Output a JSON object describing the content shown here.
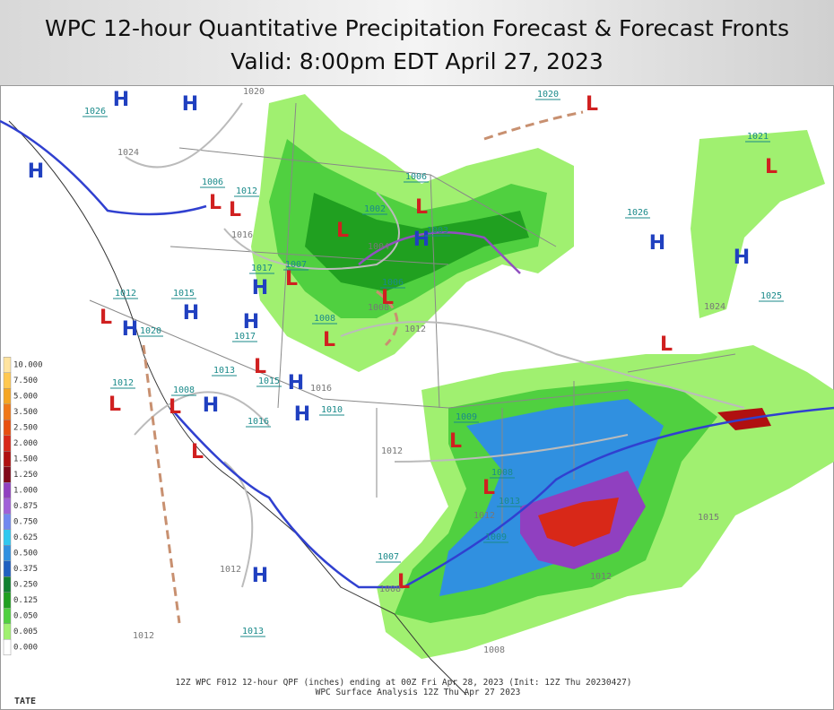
{
  "header": {
    "title": "WPC 12-hour Quantitative Precipitation Forecast & Forecast Fronts",
    "subtitle": "Valid: 8:00pm EDT April 27, 2023"
  },
  "legend": {
    "items": [
      {
        "label": "10.000",
        "color": "#ffe4a0"
      },
      {
        "label": "7.500",
        "color": "#ffc850"
      },
      {
        "label": "5.000",
        "color": "#f5a623"
      },
      {
        "label": "3.500",
        "color": "#f07818"
      },
      {
        "label": "2.500",
        "color": "#e85010"
      },
      {
        "label": "2.000",
        "color": "#d82818"
      },
      {
        "label": "1.500",
        "color": "#b01010"
      },
      {
        "label": "1.250",
        "color": "#800818"
      },
      {
        "label": "1.000",
        "color": "#9040c0"
      },
      {
        "label": "0.875",
        "color": "#a060d8"
      },
      {
        "label": "0.750",
        "color": "#7088f0"
      },
      {
        "label": "0.625",
        "color": "#30c8f0"
      },
      {
        "label": "0.500",
        "color": "#3090e0"
      },
      {
        "label": "0.375",
        "color": "#2060c0"
      },
      {
        "label": "0.250",
        "color": "#108030"
      },
      {
        "label": "0.125",
        "color": "#20a020"
      },
      {
        "label": "0.050",
        "color": "#50d040"
      },
      {
        "label": "0.005",
        "color": "#a0f070"
      },
      {
        "label": "0.000",
        "color": "#ffffff"
      }
    ]
  },
  "highs": [
    "H",
    "H",
    "H",
    "H",
    "H",
    "H",
    "H",
    "H",
    "H",
    "H",
    "H",
    "H",
    "H",
    "H"
  ],
  "lows": [
    "L",
    "L",
    "L",
    "L",
    "L",
    "L",
    "L",
    "L",
    "L",
    "L",
    "L",
    "L",
    "L",
    "L",
    "L",
    "L",
    "L",
    "L"
  ],
  "center_labels": [
    "1026",
    "1020",
    "1021",
    "1006",
    "1006",
    "1012",
    "1002",
    "1003",
    "1026",
    "1007",
    "1017",
    "1012",
    "1015",
    "1006",
    "1008",
    "1020",
    "1017",
    "1013",
    "1015",
    "1008",
    "1012",
    "1010",
    "1016",
    "1009",
    "1008",
    "1013",
    "1009",
    "1007",
    "1025",
    "1013"
  ],
  "isobar_labels": [
    "1020",
    "1024",
    "1016",
    "1004",
    "1008",
    "1012",
    "1016",
    "1012",
    "1012",
    "1012",
    "1024",
    "1015",
    "1012",
    "1012",
    "1008",
    "1008"
  ],
  "footer": {
    "line1": "12Z WPC F012 12-hour QPF (inches) ending at 00Z Fri Apr 28, 2023 (Init: 12Z Thu 20230427)",
    "line2": "WPC Surface Analysis 12Z Thu Apr 27 2023",
    "logo": "TATE"
  }
}
